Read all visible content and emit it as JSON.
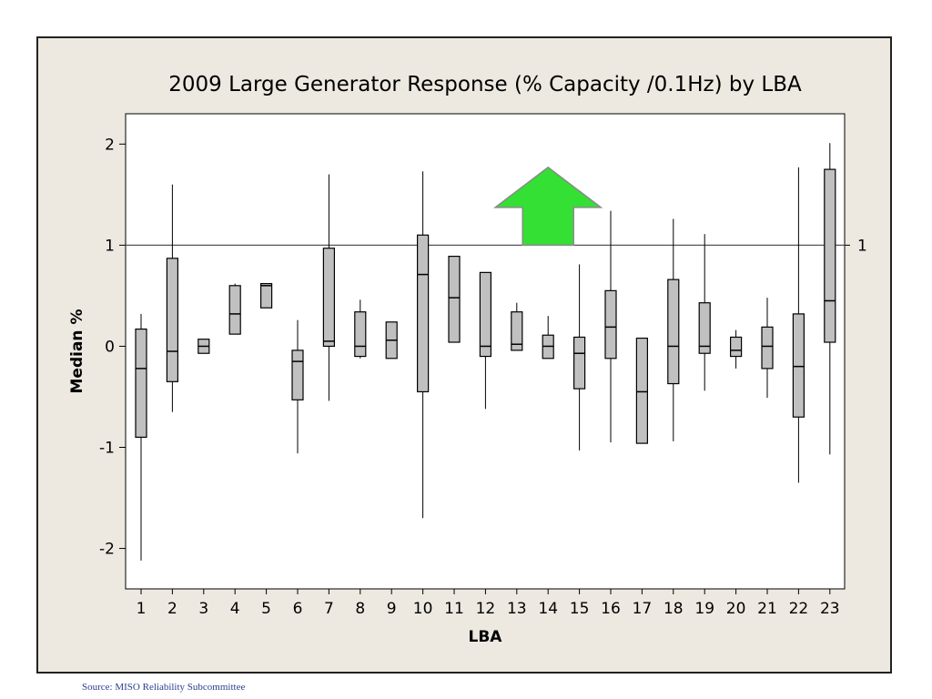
{
  "chart_data": {
    "type": "boxplot",
    "title": "2009 Large Generator Response (% Capacity /0.1Hz) by LBA",
    "xlabel": "LBA",
    "ylabel": "Median %",
    "ylim": [
      -2.4,
      2.3
    ],
    "yticks": [
      2,
      1,
      0,
      -1,
      -2
    ],
    "categories": [
      "1",
      "2",
      "3",
      "4",
      "5",
      "6",
      "7",
      "8",
      "9",
      "10",
      "11",
      "12",
      "13",
      "14",
      "15",
      "16",
      "17",
      "18",
      "19",
      "20",
      "21",
      "22",
      "23"
    ],
    "boxes": [
      {
        "lba": "1",
        "whisker_low": -2.12,
        "q1": -0.9,
        "median": -0.22,
        "q3": 0.17,
        "whisker_high": 0.32
      },
      {
        "lba": "2",
        "whisker_low": -0.65,
        "q1": -0.35,
        "median": -0.05,
        "q3": 0.87,
        "whisker_high": 1.6
      },
      {
        "lba": "3",
        "whisker_low": -0.07,
        "q1": -0.07,
        "median": 0.0,
        "q3": 0.07,
        "whisker_high": 0.07
      },
      {
        "lba": "4",
        "whisker_low": 0.12,
        "q1": 0.12,
        "median": 0.32,
        "q3": 0.6,
        "whisker_high": 0.62
      },
      {
        "lba": "5",
        "whisker_low": 0.38,
        "q1": 0.38,
        "median": 0.6,
        "q3": 0.62,
        "whisker_high": 0.62
      },
      {
        "lba": "6",
        "whisker_low": -1.06,
        "q1": -0.53,
        "median": -0.15,
        "q3": -0.04,
        "whisker_high": 0.26
      },
      {
        "lba": "7",
        "whisker_low": -0.54,
        "q1": 0.0,
        "median": 0.05,
        "q3": 0.97,
        "whisker_high": 1.7
      },
      {
        "lba": "8",
        "whisker_low": -0.12,
        "q1": -0.1,
        "median": 0.0,
        "q3": 0.34,
        "whisker_high": 0.46
      },
      {
        "lba": "9",
        "whisker_low": -0.12,
        "q1": -0.12,
        "median": 0.06,
        "q3": 0.24,
        "whisker_high": 0.24
      },
      {
        "lba": "10",
        "whisker_low": -1.7,
        "q1": -0.45,
        "median": 0.71,
        "q3": 1.1,
        "whisker_high": 1.73
      },
      {
        "lba": "11",
        "whisker_low": 0.04,
        "q1": 0.04,
        "median": 0.48,
        "q3": 0.89,
        "whisker_high": 0.89
      },
      {
        "lba": "12",
        "whisker_low": -0.62,
        "q1": -0.1,
        "median": 0.0,
        "q3": 0.73,
        "whisker_high": 0.73
      },
      {
        "lba": "13",
        "whisker_low": -0.04,
        "q1": -0.04,
        "median": 0.02,
        "q3": 0.34,
        "whisker_high": 0.43
      },
      {
        "lba": "14",
        "whisker_low": -0.12,
        "q1": -0.12,
        "median": 0.0,
        "q3": 0.11,
        "whisker_high": 0.3
      },
      {
        "lba": "15",
        "whisker_low": -1.03,
        "q1": -0.42,
        "median": -0.07,
        "q3": 0.09,
        "whisker_high": 0.81
      },
      {
        "lba": "16",
        "whisker_low": -0.95,
        "q1": -0.12,
        "median": 0.19,
        "q3": 0.55,
        "whisker_high": 1.34
      },
      {
        "lba": "17",
        "whisker_low": -0.96,
        "q1": -0.96,
        "median": -0.45,
        "q3": 0.08,
        "whisker_high": 0.08
      },
      {
        "lba": "18",
        "whisker_low": -0.94,
        "q1": -0.37,
        "median": 0.0,
        "q3": 0.66,
        "whisker_high": 1.26
      },
      {
        "lba": "19",
        "whisker_low": -0.44,
        "q1": -0.07,
        "median": 0.0,
        "q3": 0.43,
        "whisker_high": 1.11
      },
      {
        "lba": "20",
        "whisker_low": -0.22,
        "q1": -0.1,
        "median": -0.04,
        "q3": 0.09,
        "whisker_high": 0.16
      },
      {
        "lba": "21",
        "whisker_low": -0.51,
        "q1": -0.22,
        "median": 0.0,
        "q3": 0.19,
        "whisker_high": 0.48
      },
      {
        "lba": "22",
        "whisker_low": -1.35,
        "q1": -0.7,
        "median": -0.2,
        "q3": 0.32,
        "whisker_high": 1.77
      },
      {
        "lba": "23",
        "whisker_low": -1.07,
        "q1": 0.04,
        "median": 0.45,
        "q3": 1.75,
        "whisker_high": 2.01
      }
    ],
    "reference_line": {
      "y": 1,
      "label": "1"
    },
    "annotation": {
      "type": "up-arrow",
      "x": 14,
      "y_base": 1,
      "y_tip": 1.77,
      "color": "#33e033"
    },
    "box_fill": "#c0c0c0",
    "plot_background": "#ffffff",
    "figure_background": "#ede9e0",
    "grid": false,
    "legend": "none"
  },
  "source": "Source: MISO Reliability Subcommittee"
}
